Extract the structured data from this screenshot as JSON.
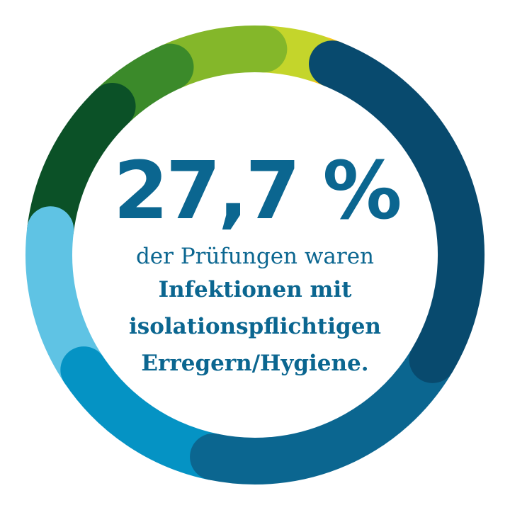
{
  "chart_data": {
    "type": "donut",
    "headline": "27,7 %",
    "lines": [
      "der Prüfungen waren",
      "Infektionen mit",
      "isolationspflichtigen",
      "Erregern/Hygiene."
    ],
    "segments": [
      {
        "value": 27.7,
        "color": "#084a6e"
      },
      {
        "value": 20.0,
        "color": "#0b6690"
      },
      {
        "value": 12.5,
        "color": "#0593c4"
      },
      {
        "value": 11.5,
        "color": "#5fc3e4"
      },
      {
        "value": 11.0,
        "color": "#0b5127"
      },
      {
        "value": 5.5,
        "color": "#3b8a2a"
      },
      {
        "value": 7.5,
        "color": "#84b72a"
      },
      {
        "value": 4.0,
        "color": "#c4d52b"
      },
      {
        "value": 1.5,
        "color": "#f3c61d"
      }
    ]
  }
}
